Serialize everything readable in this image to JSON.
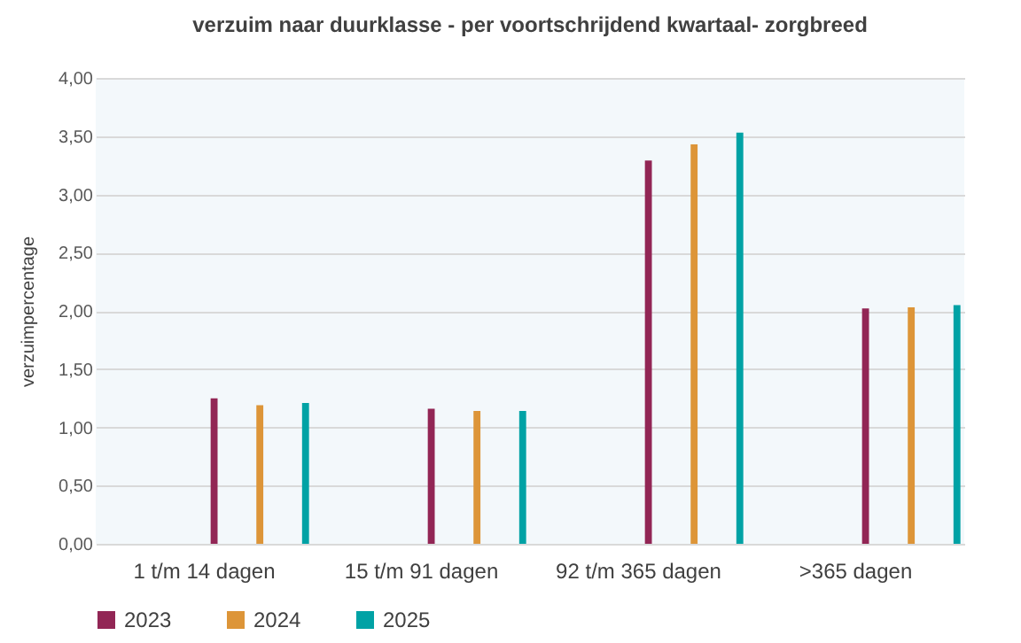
{
  "chart_data": {
    "type": "bar",
    "title": "verzuim naar duurklasse - per voortschrijdend kwartaal- zorgbreed",
    "ylabel": "verzuimpercentage",
    "categories": [
      "1 t/m 14 dagen",
      "15 t/m 91 dagen",
      "92 t/m 365 dagen",
      ">365 dagen"
    ],
    "series": [
      {
        "name": "2023",
        "color": "#922655",
        "values": [
          1.25,
          1.16,
          3.29,
          2.02
        ]
      },
      {
        "name": "2024",
        "color": "#dd9538",
        "values": [
          1.19,
          1.14,
          3.43,
          2.03
        ]
      },
      {
        "name": "2025",
        "color": "#00a2a5",
        "values": [
          1.21,
          1.14,
          3.53,
          2.05
        ]
      }
    ],
    "ylim": [
      0,
      4
    ],
    "yticks": [
      {
        "value": 0,
        "label": "0,00"
      },
      {
        "value": 0.5,
        "label": "0,50"
      },
      {
        "value": 1,
        "label": "1,00"
      },
      {
        "value": 1.5,
        "label": "1,50"
      },
      {
        "value": 2,
        "label": "2,00"
      },
      {
        "value": 2.5,
        "label": "2,50"
      },
      {
        "value": 3,
        "label": "3,00"
      },
      {
        "value": 3.5,
        "label": "3,50"
      },
      {
        "value": 4,
        "label": "4,00"
      }
    ],
    "grid": "y",
    "legend": "bottom"
  }
}
